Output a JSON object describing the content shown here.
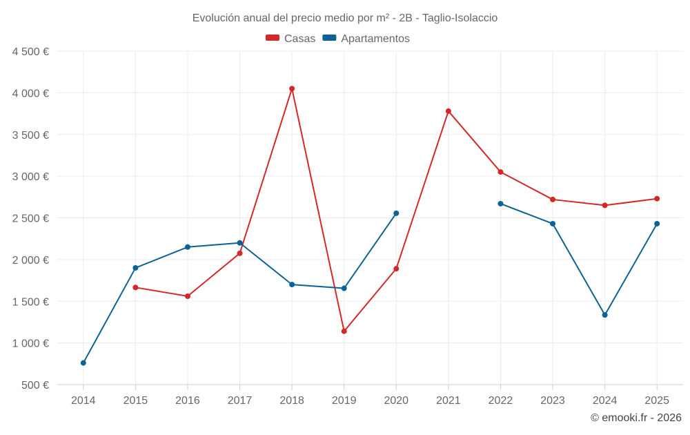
{
  "chart_data": {
    "type": "line",
    "title": "Evolución anual del precio medio por m² - 2B - Taglio-Isolaccio",
    "categories": [
      "2014",
      "2015",
      "2016",
      "2017",
      "2018",
      "2019",
      "2020",
      "2021",
      "2022",
      "2023",
      "2024",
      "2025"
    ],
    "series": [
      {
        "name": "Casas",
        "color": "#d62728",
        "values": [
          null,
          1665,
          1560,
          2075,
          4050,
          1140,
          1890,
          3780,
          3050,
          2720,
          2650,
          2730
        ]
      },
      {
        "name": "Apartamentos",
        "color": "#0a6394",
        "values": [
          760,
          1900,
          2150,
          2200,
          1700,
          1655,
          2555,
          null,
          2670,
          2430,
          1335,
          2430
        ]
      }
    ],
    "ylim": [
      500,
      4500
    ],
    "yticks": [
      500,
      1000,
      1500,
      2000,
      2500,
      3000,
      3500,
      4000,
      4500
    ],
    "ytick_labels": [
      "500 €",
      "1 000 €",
      "1 500 €",
      "2 000 €",
      "2 500 €",
      "3 000 €",
      "3 500 €",
      "4 000 €",
      "4 500 €"
    ],
    "xlabel": "",
    "ylabel": "",
    "grid": true,
    "legend_position": "top-center"
  },
  "credit": "© emooki.fr - 2026"
}
